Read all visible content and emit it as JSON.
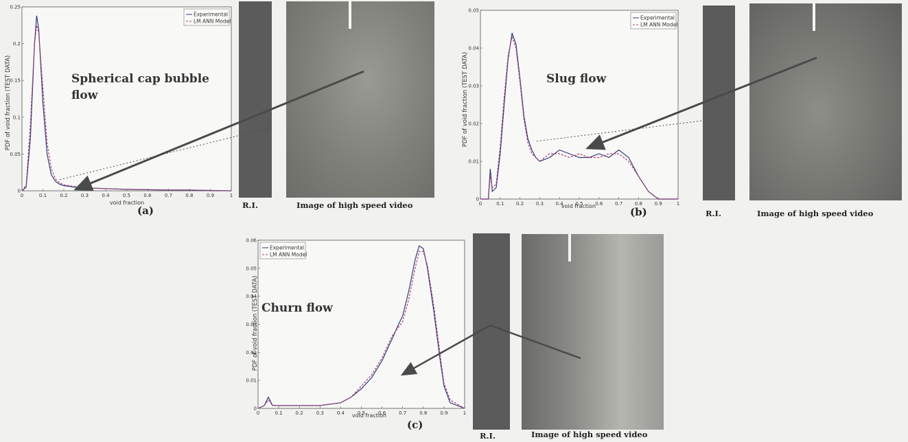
{
  "colors": {
    "experimental": "#2f3a78",
    "model": "#b03a7a",
    "arrow": "#4a4a4a",
    "ri_strip": "#5a5a5a",
    "video": "#8a8a86"
  },
  "common": {
    "legend_experimental": "Experimental",
    "legend_model": "LM ANN Model",
    "ylabel": "PDF of void fraction (TEST DATA)",
    "xlabel": "void fraction",
    "ri_label": "R.I.",
    "video_caption": "Image of high speed video"
  },
  "chart_data": [
    {
      "type": "line",
      "panel": "(a)",
      "annotation": "Spherical cap bubble flow",
      "xlabel": "void fraction",
      "ylabel": "PDF of void fraction (TEST DATA)",
      "xlim": [
        0,
        1
      ],
      "ylim": [
        0,
        0.25
      ],
      "xticks": [
        "0",
        "0.1",
        "0.2",
        "0.3",
        "0.4",
        "0.5",
        "0.6",
        "0.7",
        "0.8",
        "0.9",
        "1"
      ],
      "yticks": [
        "0",
        "0.05",
        "0.1",
        "0.15",
        "0.2",
        "0.25"
      ],
      "legend": "top-right",
      "series": [
        {
          "name": "Experimental",
          "x": [
            0,
            0.02,
            0.04,
            0.06,
            0.07,
            0.08,
            0.1,
            0.12,
            0.14,
            0.16,
            0.18,
            0.2,
            0.25,
            0.3,
            0.4,
            0.5,
            0.6,
            0.7,
            0.8,
            0.9,
            1.0
          ],
          "y": [
            0,
            0.005,
            0.07,
            0.2,
            0.238,
            0.22,
            0.12,
            0.05,
            0.022,
            0.013,
            0.009,
            0.007,
            0.005,
            0.004,
            0.003,
            0.002,
            0.0015,
            0.001,
            0.001,
            0.0005,
            0
          ]
        },
        {
          "name": "LM ANN Model",
          "x": [
            0,
            0.02,
            0.04,
            0.06,
            0.07,
            0.08,
            0.1,
            0.12,
            0.14,
            0.16,
            0.18,
            0.2,
            0.25,
            0.3,
            0.4,
            0.5,
            0.6,
            0.7,
            0.8,
            0.9,
            1.0
          ],
          "y": [
            0,
            0.008,
            0.09,
            0.2,
            0.225,
            0.215,
            0.14,
            0.065,
            0.03,
            0.016,
            0.011,
            0.008,
            0.006,
            0.004,
            0.003,
            0.002,
            0.0015,
            0.001,
            0.001,
            0.0005,
            0
          ]
        }
      ]
    },
    {
      "type": "line",
      "panel": "(b)",
      "annotation": "Slug flow",
      "xlabel": "void fraction",
      "ylabel": "PDF of void fraction (TEST DATA)",
      "xlim": [
        0,
        1
      ],
      "ylim": [
        0,
        0.05
      ],
      "xticks": [
        "0",
        "0.1",
        "0.2",
        "0.3",
        "0.4",
        "0.5",
        "0.6",
        "0.7",
        "0.8",
        "0.9",
        "1"
      ],
      "yticks": [
        "0",
        "0.01",
        "0.02",
        "0.03",
        "0.04",
        "0.05"
      ],
      "legend": "top-right",
      "series": [
        {
          "name": "Experimental",
          "x": [
            0,
            0.04,
            0.05,
            0.06,
            0.08,
            0.1,
            0.12,
            0.14,
            0.16,
            0.18,
            0.2,
            0.22,
            0.24,
            0.26,
            0.28,
            0.3,
            0.35,
            0.4,
            0.45,
            0.5,
            0.55,
            0.6,
            0.65,
            0.7,
            0.75,
            0.8,
            0.85,
            0.9,
            1.0
          ],
          "y": [
            0,
            0,
            0.008,
            0.002,
            0.003,
            0.012,
            0.025,
            0.037,
            0.044,
            0.041,
            0.032,
            0.022,
            0.016,
            0.013,
            0.011,
            0.01,
            0.011,
            0.013,
            0.012,
            0.011,
            0.011,
            0.012,
            0.011,
            0.013,
            0.011,
            0.006,
            0.002,
            0,
            0
          ]
        },
        {
          "name": "LM ANN Model",
          "x": [
            0,
            0.04,
            0.05,
            0.06,
            0.08,
            0.1,
            0.12,
            0.14,
            0.16,
            0.18,
            0.2,
            0.22,
            0.24,
            0.26,
            0.28,
            0.3,
            0.35,
            0.4,
            0.45,
            0.5,
            0.55,
            0.6,
            0.65,
            0.7,
            0.75,
            0.8,
            0.85,
            0.9,
            1.0
          ],
          "y": [
            0,
            0,
            0.006,
            0.003,
            0.004,
            0.014,
            0.027,
            0.038,
            0.043,
            0.04,
            0.031,
            0.021,
            0.015,
            0.012,
            0.011,
            0.01,
            0.012,
            0.012,
            0.011,
            0.012,
            0.011,
            0.011,
            0.012,
            0.012,
            0.01,
            0.006,
            0.002,
            0,
            0
          ]
        }
      ]
    },
    {
      "type": "line",
      "panel": "(c)",
      "annotation": "Churn flow",
      "xlabel": "void fraction",
      "ylabel": "PDF of void fraction (TEST DATA)",
      "xlim": [
        0,
        1
      ],
      "ylim": [
        0,
        0.06
      ],
      "xticks": [
        "0",
        "0.1",
        "0.2",
        "0.3",
        "0.4",
        "0.5",
        "0.6",
        "0.7",
        "0.8",
        "0.9",
        "1"
      ],
      "yticks": [
        "0",
        "0.01",
        "0.02",
        "0.03",
        "0.04",
        "0.05",
        "0.06"
      ],
      "legend": "top-left",
      "series": [
        {
          "name": "Experimental",
          "x": [
            0,
            0.03,
            0.05,
            0.07,
            0.1,
            0.2,
            0.3,
            0.4,
            0.45,
            0.5,
            0.55,
            0.6,
            0.65,
            0.68,
            0.7,
            0.73,
            0.76,
            0.78,
            0.8,
            0.82,
            0.85,
            0.88,
            0.9,
            0.93,
            1.0
          ],
          "y": [
            0,
            0.001,
            0.004,
            0.001,
            0.001,
            0.001,
            0.001,
            0.002,
            0.004,
            0.007,
            0.011,
            0.017,
            0.025,
            0.03,
            0.033,
            0.042,
            0.053,
            0.058,
            0.057,
            0.05,
            0.035,
            0.018,
            0.008,
            0.002,
            0
          ]
        },
        {
          "name": "LM ANN Model",
          "x": [
            0,
            0.03,
            0.05,
            0.07,
            0.1,
            0.2,
            0.3,
            0.4,
            0.45,
            0.5,
            0.55,
            0.6,
            0.65,
            0.68,
            0.7,
            0.73,
            0.76,
            0.78,
            0.8,
            0.82,
            0.85,
            0.88,
            0.9,
            0.93,
            1.0
          ],
          "y": [
            0,
            0.001,
            0.003,
            0.001,
            0.001,
            0.001,
            0.001,
            0.002,
            0.004,
            0.008,
            0.012,
            0.018,
            0.026,
            0.029,
            0.031,
            0.039,
            0.05,
            0.056,
            0.056,
            0.051,
            0.037,
            0.02,
            0.009,
            0.003,
            0
          ]
        }
      ]
    }
  ]
}
